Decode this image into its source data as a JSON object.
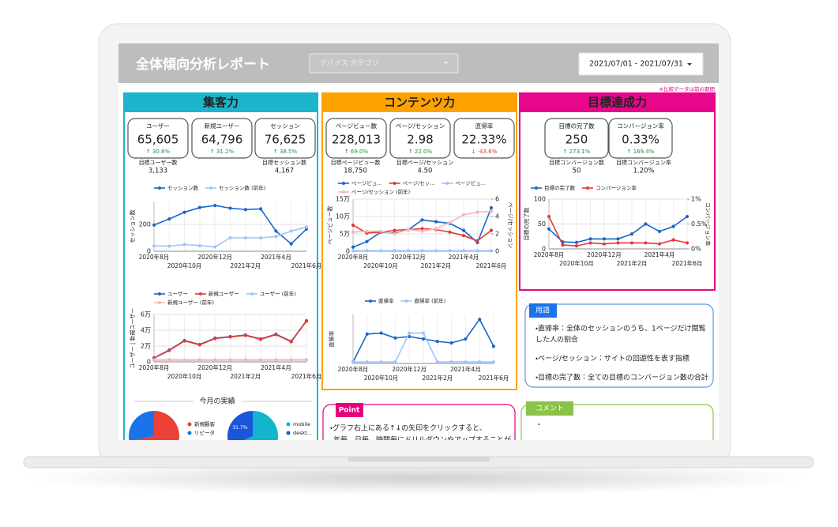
{
  "header": {
    "title": "全体傾向分析レポート",
    "filter": "デバイス カテゴリ",
    "date_range": "2021/07/01 - 2021/07/31",
    "note": "※比較データは前の期間"
  },
  "sections": [
    {
      "title": "集客力",
      "color": "#1cb5cd",
      "kpis": [
        {
          "label": "ユーザー",
          "value": "65,605",
          "change": "↑ 30.8%",
          "change_color": "#1e8e3e"
        },
        {
          "label": "新規ユーザー",
          "value": "64,796",
          "change": "↑ 31.2%",
          "change_color": "#1e8e3e"
        },
        {
          "label": "セッション",
          "value": "76,625",
          "change": "↑ 38.5%",
          "change_color": "#1e8e3e"
        }
      ],
      "targets": [
        {
          "label": "目標ユーザー数",
          "value": "3,133"
        },
        {
          "label": "目標セッション数",
          "value": "4,167"
        }
      ]
    },
    {
      "title": "コンテンツ力",
      "color": "#ffa200",
      "kpis": [
        {
          "label": "ページビュー数",
          "value": "228,013",
          "change": "↑ 69.0%",
          "change_color": "#1e8e3e"
        },
        {
          "label": "ページ/セッション",
          "value": "2.98",
          "change": "↑ 22.0%",
          "change_color": "#1e8e3e"
        },
        {
          "label": "直帰率",
          "value": "22.33%",
          "change": "↓ -43.6%",
          "change_color": "#d93025"
        }
      ],
      "targets": [
        {
          "label": "目標ページビュー数",
          "value": "18,750"
        },
        {
          "label": "目標ページ/セッション",
          "value": "4.50"
        }
      ]
    },
    {
      "title": "目標達成力",
      "color": "#e8078a",
      "kpis": [
        {
          "label": "目標の完了数",
          "value": "250",
          "change": "↑ 273.1%",
          "change_color": "#1e8e3e"
        },
        {
          "label": "コンバージョン率",
          "value": "0.33%",
          "change": "↑ 169.4%",
          "change_color": "#1e8e3e"
        }
      ],
      "targets": [
        {
          "label": "目標コンバージョン数",
          "value": "50"
        },
        {
          "label": "目標コンバージョン率",
          "value": "1.20%"
        }
      ]
    }
  ],
  "charts": [
    {
      "type": "line",
      "ylabel": "セッション数",
      "categories": [
        "2020年8月",
        null,
        "2020年10月",
        null,
        "2020年12月",
        null,
        "2021年2月",
        null,
        "2021年4月",
        null,
        "2021年6月"
      ],
      "ylim": [
        0,
        370
      ],
      "yticks": [
        0,
        200
      ],
      "grid": true,
      "series": [
        {
          "name": "セッション数",
          "color": "#1a66cc",
          "values": [
            195,
            240,
            290,
            325,
            340,
            320,
            310,
            315,
            150,
            55,
            165
          ]
        },
        {
          "name": "セッション数 (前年)",
          "color": "#9fc5f8",
          "values": [
            40,
            38,
            50,
            42,
            32,
            100,
            100,
            100,
            110,
            150,
            180
          ]
        }
      ]
    },
    {
      "type": "line",
      "ylabel": "ユーザー | 新規ユーザー",
      "categories": [
        "2020年8月",
        null,
        "2020年10月",
        null,
        "2020年12月",
        null,
        "2021年2月",
        null,
        "2021年4月",
        null,
        "2021年6月"
      ],
      "ylim": [
        0,
        60000
      ],
      "yticks": [
        0,
        {
          "value": 20000,
          "label": "2万"
        },
        {
          "value": 40000,
          "label": "4万"
        },
        {
          "value": 60000,
          "label": "6万"
        }
      ],
      "grid": true,
      "series": [
        {
          "name": "ユーザー",
          "color": "#1a66cc",
          "values": [
            5000,
            15000,
            27000,
            22000,
            30000,
            32000,
            34000,
            29000,
            35000,
            26000,
            52000
          ]
        },
        {
          "name": "新規ユーザー",
          "color": "#e53935",
          "values": [
            4800,
            14500,
            26500,
            21500,
            29500,
            31500,
            33500,
            28500,
            34500,
            25500,
            51500
          ]
        },
        {
          "name": "ユーザー (前年)",
          "color": "#9fc5f8",
          "values": [
            2500,
            2600,
            2400,
            2600,
            2500,
            2700,
            2600,
            2500,
            2700,
            2600,
            2800
          ]
        },
        {
          "name": "新規ユーザー (前年)",
          "color": "#f4b6b6",
          "values": [
            2000,
            2100,
            1900,
            2100,
            2000,
            2200,
            2100,
            2000,
            2200,
            2100,
            2300
          ]
        }
      ]
    },
    {
      "type": "line",
      "ylabel": "ページビュー数",
      "y2label": "ページ/セッション",
      "categories": [
        "2020年8月",
        null,
        "2020年10月",
        null,
        "2020年12月",
        null,
        "2021年2月",
        null,
        "2021年4月",
        null,
        "2021年6月"
      ],
      "ylim": [
        0,
        150000
      ],
      "yticks": [
        0,
        {
          "value": 50000,
          "label": "5万"
        },
        {
          "value": 100000,
          "label": "10万"
        },
        {
          "value": 150000,
          "label": "15万"
        }
      ],
      "y2lim": [
        0,
        6
      ],
      "y2ticks": [
        0,
        2,
        4,
        6
      ],
      "grid": true,
      "series": [
        {
          "name": "ページビュ...",
          "color": "#1a66cc",
          "values": [
            12000,
            28000,
            55000,
            52000,
            62000,
            90000,
            85000,
            80000,
            60000,
            25000,
            125000
          ]
        },
        {
          "name": "ページ/セッ...",
          "color": "#e53935",
          "axis": "y2",
          "values": [
            3.0,
            2.1,
            2.2,
            2.4,
            2.5,
            2.6,
            2.5,
            2.2,
            1.8,
            1.2,
            2.4
          ]
        },
        {
          "name": "ページビュ...",
          "color": "#9fc5f8",
          "values": [
            1500,
            1600,
            1500,
            1700,
            1500,
            1600,
            1500,
            1600,
            1700,
            1500,
            1600
          ]
        },
        {
          "name": "ページ/セッション (前年)",
          "color": "#f4b6b6",
          "axis": "y2",
          "values": [
            2.2,
            2.3,
            2.3,
            2.0,
            2.5,
            2.3,
            2.6,
            3.3,
            4.2,
            4.5,
            4.6
          ]
        }
      ]
    },
    {
      "type": "line",
      "ylabel": "直帰率",
      "categories": [
        "2020年8月",
        null,
        "2020年10月",
        null,
        "2020年12月",
        null,
        "2021年2月",
        null,
        "2021年4月",
        null,
        "2021年6月"
      ],
      "ylim": [
        0,
        100
      ],
      "grid": true,
      "series": [
        {
          "name": "直帰率",
          "color": "#1a66cc",
          "values": [
            3,
            60,
            62,
            52,
            55,
            50,
            45,
            42,
            50,
            90,
            35
          ]
        },
        {
          "name": "直帰率 (前年)",
          "color": "#9fc5f8",
          "values": [
            3,
            3,
            3,
            3,
            62,
            62,
            3,
            3,
            3,
            3,
            3
          ]
        }
      ]
    },
    {
      "type": "line",
      "ylabel": "目標の完了数",
      "y2label": "コンバージョン率",
      "categories": [
        "2020年8月",
        null,
        "2020年10月",
        null,
        "2020年12月",
        null,
        "2021年2月",
        null,
        "2021年4月",
        null,
        "2021年6月"
      ],
      "ylim": [
        0,
        100
      ],
      "yticks": [
        0,
        50,
        100
      ],
      "y2lim": [
        0,
        1
      ],
      "y2ticks": [
        {
          "value": 0,
          "label": "0%"
        },
        {
          "value": 0.5,
          "label": "0.5%"
        },
        {
          "value": 1,
          "label": "1%"
        }
      ],
      "grid": true,
      "series": [
        {
          "name": "目標の完了数",
          "color": "#1a66cc",
          "values": [
            40,
            14,
            13,
            20,
            20,
            20,
            30,
            50,
            35,
            45,
            65
          ]
        },
        {
          "name": "コンバージョン率",
          "color": "#e53935",
          "axis": "y2",
          "values": [
            0.65,
            0.08,
            0.06,
            0.12,
            0.1,
            0.12,
            0.12,
            0.12,
            0.1,
            0.18,
            0.12
          ]
        }
      ]
    }
  ],
  "pies": {
    "title": "今月の実績",
    "charts": [
      {
        "type": "pie",
        "categories": [
          "新規顧客",
          "リピータ"
        ],
        "values": [
          72,
          28
        ],
        "colors": [
          "#ea4335",
          "#1a73e8"
        ]
      },
      {
        "type": "pie",
        "categories": [
          "mobile",
          "deskt..."
        ],
        "values": [
          68.3,
          31.7
        ],
        "value_labels": [
          null,
          "31.7%"
        ],
        "colors": [
          "#12b5cb",
          "#1a56db"
        ]
      }
    ]
  },
  "glossary": {
    "title": "用語",
    "lines": [
      "・直帰率：全体のセッションのうち、1ページだけ閲覧",
      "した人の割合",
      "・ページ/セッション：サイトの回遊性を表す指標",
      "・目標の完了数：全ての目標のコンバージョン数の合計"
    ]
  },
  "point": {
    "title": "Point",
    "lines": [
      "・グラフ右上にある↑↓の矢印をクリックすると、",
      "年毎、日毎、時間毎にドリルダウンやアップすることが"
    ]
  },
  "comment": {
    "title": "コメント",
    "lines": [
      "・"
    ]
  }
}
